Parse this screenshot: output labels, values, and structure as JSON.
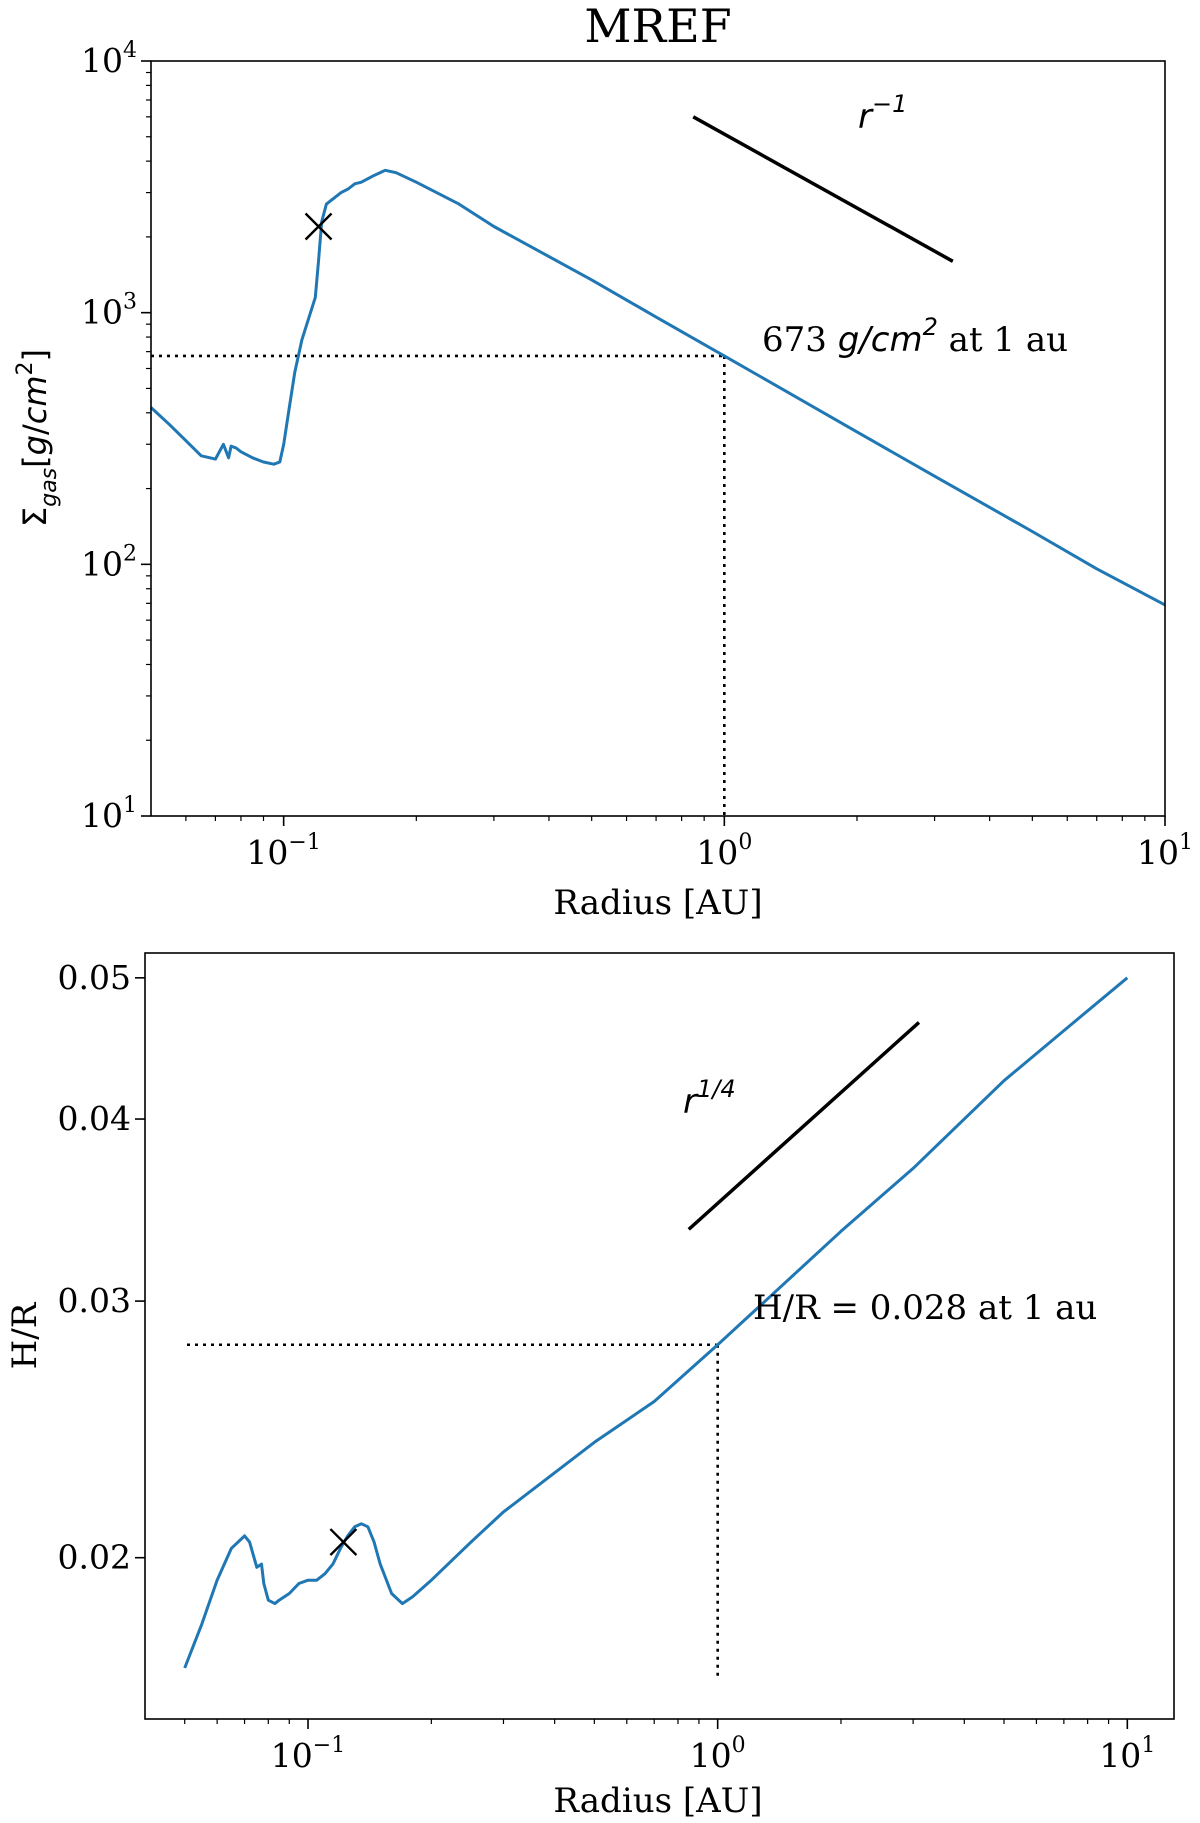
{
  "chart_data": [
    {
      "type": "line",
      "title": "MREF",
      "xlabel": "Radius [AU]",
      "ylabel": "Σgas[g/cm2]",
      "xscale": "log",
      "yscale": "log",
      "xlim": [
        0.05,
        10
      ],
      "ylim": [
        10,
        10000
      ],
      "xticks": [
        {
          "value": 0.1,
          "base": "10",
          "exp": "−1"
        },
        {
          "value": 1,
          "base": "10",
          "exp": "0"
        },
        {
          "value": 10,
          "base": "10",
          "exp": "1"
        }
      ],
      "yticks": [
        {
          "value": 10,
          "base": "10",
          "exp": "1"
        },
        {
          "value": 100,
          "base": "10",
          "exp": "2"
        },
        {
          "value": 1000,
          "base": "10",
          "exp": "3"
        },
        {
          "value": 10000,
          "base": "10",
          "exp": "4"
        }
      ],
      "series": [
        {
          "name": "Sigma_gas",
          "color": "#1f77b4",
          "x": [
            0.05,
            0.055,
            0.06,
            0.065,
            0.07,
            0.073,
            0.075,
            0.076,
            0.078,
            0.08,
            0.085,
            0.09,
            0.095,
            0.098,
            0.1,
            0.103,
            0.106,
            0.11,
            0.114,
            0.118,
            0.12,
            0.122,
            0.125,
            0.13,
            0.135,
            0.14,
            0.145,
            0.15,
            0.16,
            0.17,
            0.18,
            0.2,
            0.25,
            0.3,
            0.5,
            0.7,
            1.0,
            2.0,
            3.0,
            5.0,
            7.0,
            10.0
          ],
          "y": [
            420,
            360,
            310,
            270,
            262,
            300,
            265,
            295,
            290,
            280,
            265,
            255,
            250,
            255,
            300,
            420,
            580,
            780,
            950,
            1150,
            1600,
            2300,
            2700,
            2850,
            3000,
            3100,
            3250,
            3300,
            3500,
            3680,
            3600,
            3300,
            2700,
            2200,
            1350,
            960,
            673,
            336,
            224,
            135,
            96,
            69
          ]
        }
      ],
      "reference_line": {
        "label_base": "r",
        "label_exp": "−1",
        "x": [
          0.85,
          3.3
        ],
        "y": [
          6000,
          1600
        ]
      },
      "markers": [
        {
          "symbol": "×",
          "x": 0.12,
          "y": 2200
        }
      ],
      "guide_point": {
        "x": 1.0,
        "y": 673
      },
      "annotation": {
        "value": "673",
        "unit_base": "g/cm",
        "unit_exp": "2",
        "suffix": "at 1 au"
      }
    },
    {
      "type": "line",
      "title": "",
      "xlabel": "Radius [AU]",
      "ylabel": "H/R",
      "xscale": "log",
      "yscale": "log",
      "xlim": [
        0.04,
        13
      ],
      "ylim": [
        0.0155,
        0.052
      ],
      "xticks": [
        {
          "value": 0.1,
          "base": "10",
          "exp": "−1"
        },
        {
          "value": 1,
          "base": "10",
          "exp": "0"
        },
        {
          "value": 10,
          "base": "10",
          "exp": "1"
        }
      ],
      "yticks": [
        {
          "value": 0.02,
          "label": "0.02"
        },
        {
          "value": 0.03,
          "label": "0.03"
        },
        {
          "value": 0.04,
          "label": "0.04"
        },
        {
          "value": 0.05,
          "label": "0.05"
        }
      ],
      "series": [
        {
          "name": "H_over_R",
          "color": "#1f77b4",
          "x": [
            0.05,
            0.055,
            0.06,
            0.065,
            0.07,
            0.072,
            0.075,
            0.077,
            0.078,
            0.08,
            0.083,
            0.085,
            0.09,
            0.095,
            0.1,
            0.105,
            0.11,
            0.115,
            0.12,
            0.125,
            0.13,
            0.135,
            0.14,
            0.145,
            0.15,
            0.16,
            0.17,
            0.18,
            0.2,
            0.25,
            0.3,
            0.5,
            0.7,
            1.0,
            2.0,
            3.0,
            5.0,
            7.0,
            10.0
          ],
          "y": [
            0.0168,
            0.018,
            0.0193,
            0.0203,
            0.0207,
            0.0205,
            0.0197,
            0.0198,
            0.0192,
            0.0187,
            0.0186,
            0.0187,
            0.0189,
            0.0192,
            0.0193,
            0.0193,
            0.0195,
            0.0198,
            0.0203,
            0.0207,
            0.021,
            0.0211,
            0.021,
            0.0205,
            0.0198,
            0.0189,
            0.0186,
            0.0188,
            0.0193,
            0.0205,
            0.0215,
            0.024,
            0.0256,
            0.028,
            0.0335,
            0.037,
            0.0425,
            0.046,
            0.05
          ]
        }
      ],
      "reference_line": {
        "label_base": "r",
        "label_exp": "1/4",
        "x": [
          0.85,
          3.1
        ],
        "y": [
          0.0336,
          0.0466
        ]
      },
      "markers": [
        {
          "symbol": "×",
          "x": 0.122,
          "y": 0.0205
        }
      ],
      "guide_point": {
        "x": 1.0,
        "y": 0.028
      },
      "annotation": {
        "text": "H/R = 0.028 at 1 au"
      }
    }
  ]
}
